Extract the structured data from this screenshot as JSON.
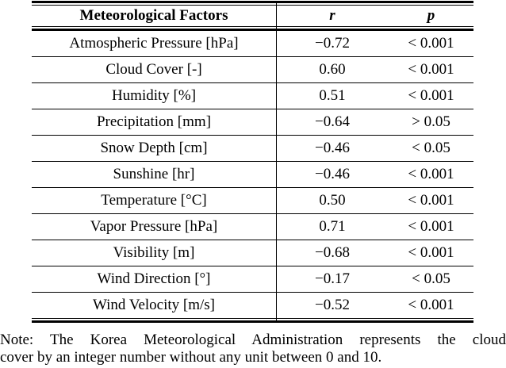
{
  "table": {
    "headers": {
      "factor": "Meteorological Factors",
      "r": "r",
      "p": "p"
    },
    "rows": [
      {
        "factor": "Atmospheric Pressure [hPa]",
        "r": "−0.72",
        "p": "< 0.001"
      },
      {
        "factor": "Cloud Cover [-]",
        "r": "0.60",
        "p": "< 0.001"
      },
      {
        "factor": "Humidity [%]",
        "r": "0.51",
        "p": "< 0.001"
      },
      {
        "factor": "Precipitation [mm]",
        "r": "−0.64",
        "p": "> 0.05"
      },
      {
        "factor": "Snow Depth [cm]",
        "r": "−0.46",
        "p": "< 0.05"
      },
      {
        "factor": "Sunshine [hr]",
        "r": "−0.46",
        "p": "< 0.001"
      },
      {
        "factor": "Temperature [°C]",
        "r": "0.50",
        "p": "< 0.001"
      },
      {
        "factor": "Vapor Pressure [hPa]",
        "r": "0.71",
        "p": "< 0.001"
      },
      {
        "factor": "Visibility [m]",
        "r": "−0.68",
        "p": "< 0.001"
      },
      {
        "factor": "Wind Direction [°]",
        "r": "−0.17",
        "p": "< 0.05"
      },
      {
        "factor": "Wind Velocity [m/s]",
        "r": "−0.52",
        "p": "< 0.001"
      }
    ]
  },
  "note": {
    "line1": "Note: The Korea Meteorological Administration represents the cloud",
    "line2": "cover by an integer number without any unit between 0 and 10."
  },
  "colors": {
    "text": "#000000",
    "line": "#000000",
    "background": "#ffffff"
  }
}
